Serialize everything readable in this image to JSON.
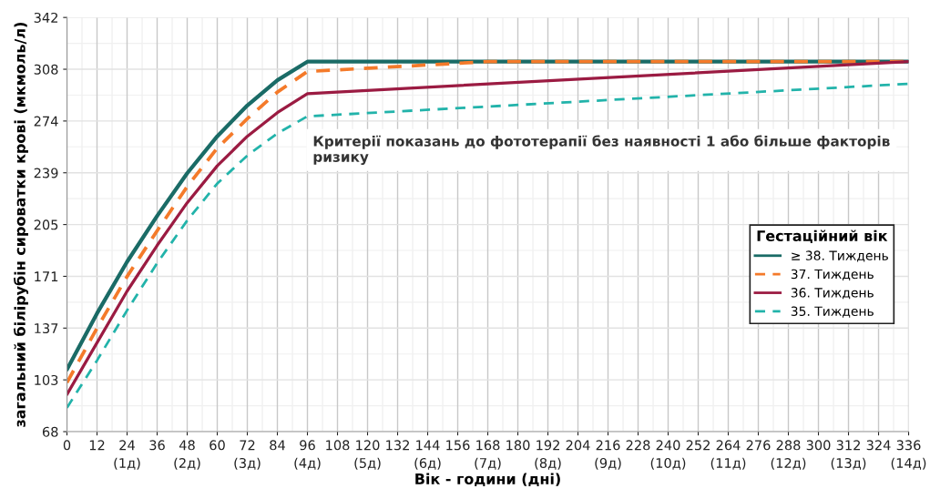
{
  "chart_data": {
    "type": "line",
    "xlabel": "Вік - години (дні)",
    "ylabel": "загальний білірубін сироватки крові (мкмоль/л)",
    "legend_title": "Гестаційний вік",
    "legend": "right",
    "grid": true,
    "xlim": [
      0,
      336
    ],
    "ylim": [
      68.4,
      342
    ],
    "xticks": [
      0,
      12,
      {
        "value": 24,
        "label": "24\n(1д)"
      },
      36,
      {
        "value": 48,
        "label": "48\n(2д)"
      },
      60,
      {
        "value": 72,
        "label": "72\n(3д)"
      },
      84,
      {
        "value": 96,
        "label": "96\n(4д)"
      },
      108,
      {
        "value": 120,
        "label": "120\n(5д)"
      },
      132,
      {
        "value": 144,
        "label": "144\n(6д)"
      },
      156,
      {
        "value": 168,
        "label": "168\n(7д)"
      },
      180,
      {
        "value": 192,
        "label": "192\n(8д)"
      },
      204,
      {
        "value": 216,
        "label": "216\n(9д)"
      },
      228,
      {
        "value": 240,
        "label": "240\n(10д)"
      },
      252,
      {
        "value": 264,
        "label": "264\n(11д)"
      },
      276,
      {
        "value": 288,
        "label": "288\n(12д)"
      },
      300,
      {
        "value": 312,
        "label": "312\n(13д)"
      },
      324,
      {
        "value": 336,
        "label": "336\n(14д)"
      }
    ],
    "yticks": [
      {
        "value": 68.4,
        "label": "68"
      },
      {
        "value": 102.6,
        "label": "103"
      },
      {
        "value": 136.8,
        "label": "137"
      },
      {
        "value": 171,
        "label": "171"
      },
      {
        "value": 205.2,
        "label": "205"
      },
      {
        "value": 239.4,
        "label": "239"
      },
      {
        "value": 273.6,
        "label": "274"
      },
      {
        "value": 307.8,
        "label": "308"
      },
      {
        "value": 342,
        "label": "342"
      }
    ],
    "annotations": [
      "Критерії показань до фототерапії без наявності 1 або більше факторів ризику"
    ],
    "series": [
      {
        "name": "≥ 38. Тиждень",
        "color": "#1a6b66",
        "line_style": "solid",
        "x": [
          0,
          12,
          24,
          36,
          48,
          60,
          72,
          84,
          96,
          336
        ],
        "values": [
          109.5,
          146.5,
          180.6,
          210.9,
          239.1,
          263.5,
          283.9,
          300.5,
          312.8,
          312.8
        ]
      },
      {
        "name": "37. Тиждень",
        "color": "#f47a2a",
        "line_style": "dashed",
        "x": [
          0,
          12,
          24,
          36,
          48,
          60,
          72,
          84,
          96,
          168,
          336
        ],
        "values": [
          100.8,
          136.8,
          170.9,
          201.1,
          230.3,
          255.7,
          275.1,
          292.7,
          306.3,
          312.8,
          312.8
        ]
      },
      {
        "name": "36. Тиждень",
        "color": "#9b1b42",
        "line_style": "solid",
        "x": [
          0,
          12,
          24,
          36,
          48,
          60,
          72,
          84,
          96,
          336
        ],
        "values": [
          93,
          127.1,
          161.2,
          191.4,
          219.6,
          244,
          263.5,
          279.1,
          291.7,
          312.8
        ]
      },
      {
        "name": "35. Тиждень",
        "color": "#22b3aa",
        "line_style": "dashed",
        "x": [
          0,
          12,
          24,
          36,
          48,
          60,
          72,
          84,
          96,
          336
        ],
        "values": [
          84.2,
          115.4,
          148.5,
          179.7,
          207.9,
          232.3,
          250.8,
          265.4,
          276.7,
          298.2
        ]
      }
    ]
  }
}
